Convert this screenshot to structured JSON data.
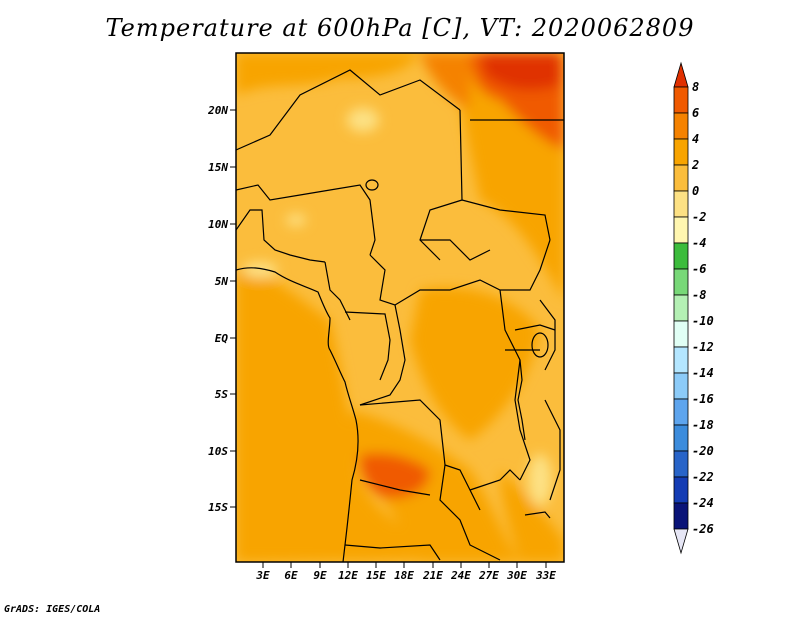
{
  "title": "Temperature at 600hPa [C], VT: 2020062809",
  "credit": "GrADS: IGES/COLA",
  "map": {
    "lat_labels": [
      "20N",
      "15N",
      "10N",
      "5N",
      "EQ",
      "5S",
      "10S",
      "15S"
    ],
    "lon_labels": [
      "3E",
      "6E",
      "9E",
      "12E",
      "15E",
      "18E",
      "21E",
      "24E",
      "27E",
      "30E",
      "33E"
    ]
  },
  "colorbar": {
    "levels": [
      "8",
      "6",
      "4",
      "2",
      "0",
      "-2",
      "-4",
      "-6",
      "-8",
      "-10",
      "-12",
      "-14",
      "-16",
      "-18",
      "-20",
      "-22",
      "-24",
      "-26"
    ],
    "colors": [
      "#e03000",
      "#f05a00",
      "#f58200",
      "#f8a400",
      "#fbbd3c",
      "#fde184",
      "#fff6b0",
      "#3cbc3c",
      "#78d878",
      "#b4f0b4",
      "#e1fff5",
      "#b4e6ff",
      "#8ccbf8",
      "#5ea5ee",
      "#3c8cdc",
      "#2864c8",
      "#143cb4",
      "#0a1478",
      "#e6e6f5"
    ]
  }
}
